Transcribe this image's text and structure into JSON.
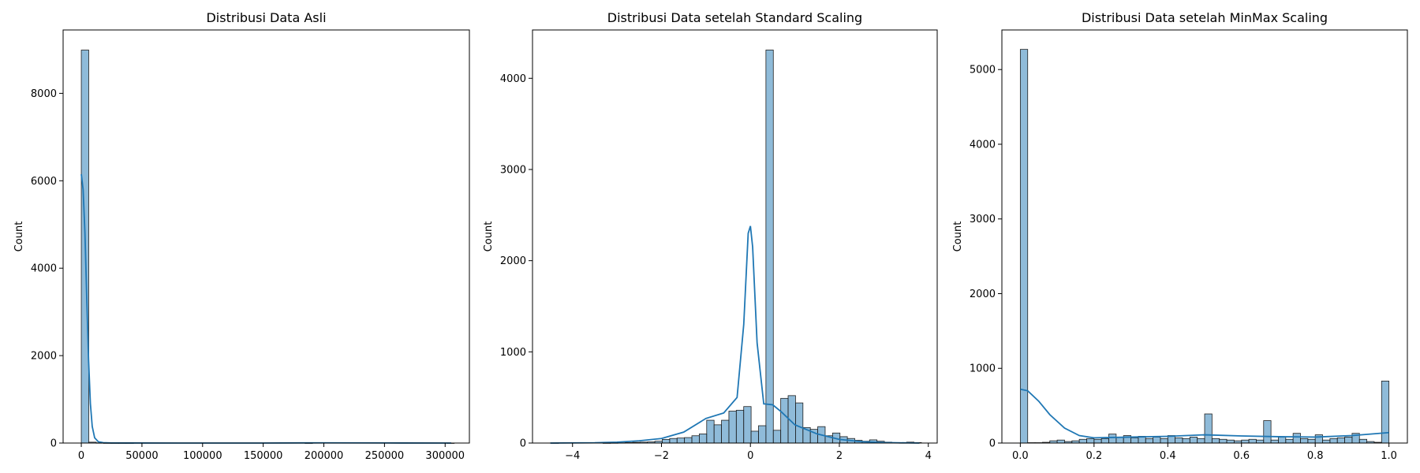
{
  "chart_data": [
    {
      "type": "bar",
      "title": "Distribusi Data Asli",
      "ylabel": "Count",
      "xlim": [
        -15000,
        320000
      ],
      "ylim": [
        0,
        9450
      ],
      "xticks": [
        0,
        50000,
        100000,
        150000,
        200000,
        250000,
        300000
      ],
      "xtick_labels": [
        "0",
        "50000",
        "100000",
        "150000",
        "200000",
        "250000",
        "300000"
      ],
      "yticks": [
        0,
        2000,
        4000,
        6000,
        8000
      ],
      "ytick_labels": [
        "0",
        "2000",
        "4000",
        "6000",
        "8000"
      ],
      "bin_start": 0,
      "bin_width": 6150,
      "values": [
        8990,
        20,
        5,
        2,
        1,
        1,
        1,
        0,
        0,
        0,
        0,
        0,
        0,
        0,
        0,
        0,
        0,
        0,
        0,
        0,
        0,
        0,
        0,
        0,
        0,
        0,
        0,
        0,
        0,
        0,
        1,
        0,
        0,
        0,
        0,
        0,
        0,
        0,
        0,
        0,
        0,
        0,
        0,
        0,
        0,
        0,
        0,
        0,
        0,
        1
      ],
      "kde": {
        "x": [
          0,
          1500,
          3000,
          4500,
          6000,
          7500,
          9000,
          11000,
          14000,
          18000,
          25000,
          40000,
          80000,
          150000,
          200000,
          250000,
          305000
        ],
        "y": [
          6150,
          5800,
          4800,
          3300,
          1900,
          900,
          380,
          120,
          30,
          8,
          2,
          1,
          0,
          0,
          5,
          2,
          0
        ]
      }
    },
    {
      "type": "bar",
      "title": "Distribusi Data setelah Standard Scaling",
      "ylabel": "Count",
      "xlim": [
        -4.9,
        4.2
      ],
      "ylim": [
        0,
        4530
      ],
      "xticks": [
        -4,
        -2,
        0,
        2,
        4
      ],
      "xtick_labels": [
        "−4",
        "−2",
        "0",
        "2",
        "4"
      ],
      "yticks": [
        0,
        1000,
        2000,
        3000,
        4000
      ],
      "ytick_labels": [
        "0",
        "1000",
        "2000",
        "3000",
        "4000"
      ],
      "bin_start": -4.48,
      "bin_width": 0.1665,
      "values": [
        1,
        0,
        0,
        0,
        0,
        0,
        0,
        1,
        2,
        3,
        5,
        8,
        10,
        12,
        20,
        40,
        50,
        55,
        60,
        80,
        100,
        250,
        200,
        250,
        350,
        360,
        400,
        130,
        190,
        4310,
        140,
        490,
        520,
        440,
        170,
        150,
        180,
        80,
        110,
        70,
        50,
        30,
        20,
        35,
        20,
        10,
        5,
        3,
        10,
        5
      ],
      "kde": {
        "x": [
          -4.5,
          -3.5,
          -3.0,
          -2.5,
          -2.0,
          -1.5,
          -1.0,
          -0.6,
          -0.3,
          -0.15,
          -0.05,
          0.0,
          0.05,
          0.15,
          0.3,
          0.5,
          0.7,
          1.0,
          1.5,
          2.0,
          2.5,
          3.0,
          3.5,
          3.8
        ],
        "y": [
          0,
          3,
          10,
          25,
          50,
          120,
          270,
          330,
          500,
          1300,
          2300,
          2380,
          2150,
          1100,
          430,
          420,
          340,
          200,
          100,
          40,
          15,
          5,
          2,
          0
        ]
      }
    },
    {
      "type": "bar",
      "title": "Distribusi Data setelah MinMax Scaling",
      "ylabel": "Count",
      "xlim": [
        -0.05,
        1.05
      ],
      "ylim": [
        0,
        5530
      ],
      "xticks": [
        0.0,
        0.2,
        0.4,
        0.6,
        0.8,
        1.0
      ],
      "xtick_labels": [
        "0.0",
        "0.2",
        "0.4",
        "0.6",
        "0.8",
        "1.0"
      ],
      "yticks": [
        0,
        1000,
        2000,
        3000,
        4000,
        5000
      ],
      "ytick_labels": [
        "0",
        "1000",
        "2000",
        "3000",
        "4000",
        "5000"
      ],
      "bin_start": 0,
      "bin_width": 0.02,
      "values": [
        5270,
        5,
        5,
        10,
        30,
        40,
        20,
        30,
        50,
        60,
        50,
        60,
        120,
        80,
        100,
        70,
        90,
        60,
        80,
        60,
        100,
        70,
        60,
        80,
        60,
        390,
        60,
        50,
        40,
        30,
        40,
        50,
        40,
        300,
        40,
        80,
        50,
        130,
        60,
        50,
        110,
        40,
        60,
        70,
        80,
        130,
        50,
        20,
        10,
        830
      ],
      "kde": {
        "x": [
          0.0,
          0.02,
          0.05,
          0.08,
          0.12,
          0.16,
          0.2,
          0.3,
          0.4,
          0.5,
          0.6,
          0.7,
          0.8,
          0.9,
          0.95,
          1.0
        ],
        "y": [
          720,
          700,
          560,
          380,
          200,
          100,
          70,
          80,
          90,
          110,
          95,
          85,
          80,
          100,
          120,
          140
        ]
      }
    }
  ]
}
